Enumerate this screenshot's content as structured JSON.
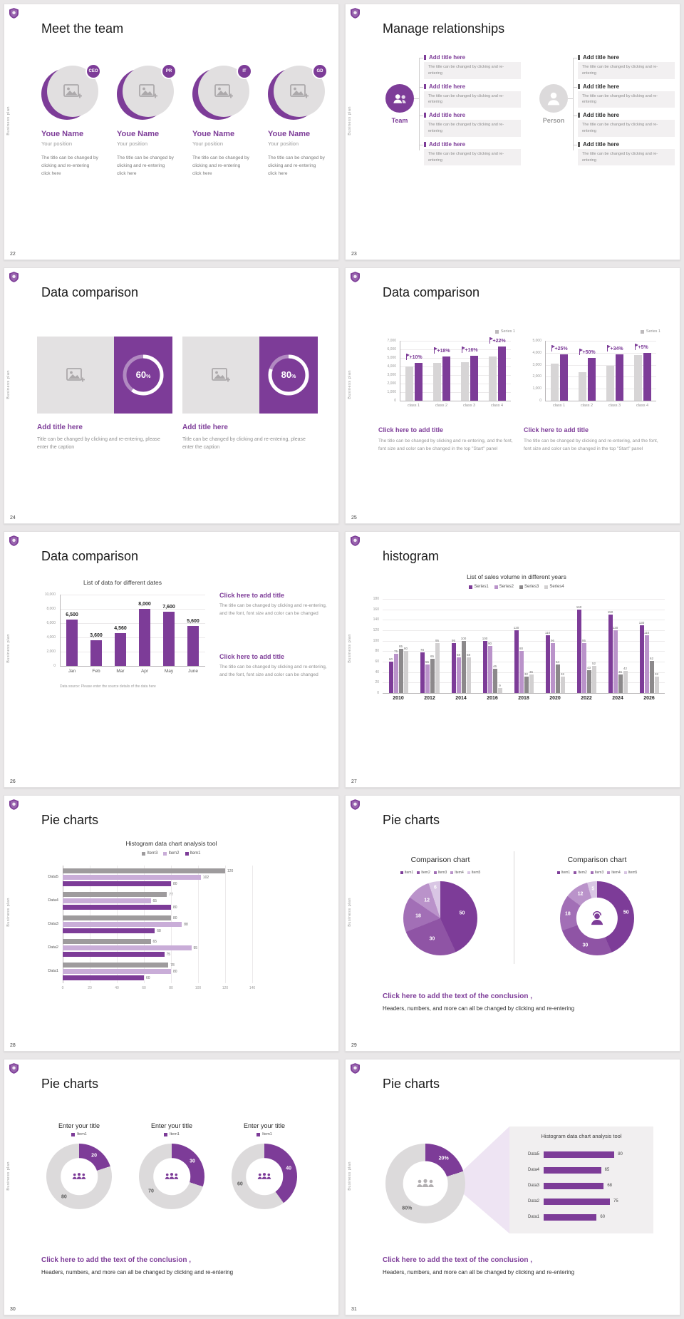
{
  "theme": {
    "purple": "#7D3C98",
    "purple_light": "#BA93CA",
    "purple_pale": "#D9C6E4",
    "gray_bar": "#D7D5D6",
    "donut_gray": "#DCDADB",
    "series_colors": [
      "#7D3C98",
      "#BA93CA",
      "#8C898B",
      "#D2D0D1"
    ],
    "hbar_colors": [
      "#9E9B9D",
      "#C9ADD8",
      "#7D3C98"
    ],
    "pie": [
      "#7D3C98",
      "#8F54A5",
      "#A26FB6",
      "#BA93CA",
      "#D9C6E4"
    ]
  },
  "common": {
    "sidebar_text": "Business plan"
  },
  "slides": [
    {
      "number": "22",
      "title": "Meet the team",
      "members": [
        {
          "badge": "CEO",
          "name": "Youe Name",
          "position": "Your position",
          "desc": "The title can be changed by clicking and re-entering click here"
        },
        {
          "badge": "PR",
          "name": "Youe Name",
          "position": "Your position",
          "desc": "The title can be changed by clicking and re-entering click here"
        },
        {
          "badge": "IT",
          "name": "Youe Name",
          "position": "Your position",
          "desc": "The title can be changed by clicking and re-entering click here"
        },
        {
          "badge": "GD",
          "name": "Youe Name",
          "position": "Your position",
          "desc": "The title can be changed by clicking and re-entering click here"
        }
      ]
    },
    {
      "number": "23",
      "title": "Manage relationships",
      "left_group": {
        "label": "Team",
        "items": [
          {
            "title": "Add title here",
            "text": "The title can be changed by clicking and re-entering"
          },
          {
            "title": "Add title here",
            "text": "The title can be changed by clicking and re-entering"
          },
          {
            "title": "Add title here",
            "text": "The title can be changed by clicking and re-entering"
          },
          {
            "title": "Add title here",
            "text": "The title can be changed by clicking and re-entering"
          }
        ]
      },
      "right_group": {
        "label": "Person",
        "items": [
          {
            "title": "Add title here",
            "text": "The title can be changed by clicking and re-entering"
          },
          {
            "title": "Add title here",
            "text": "The title can be changed by clicking and re-entering"
          },
          {
            "title": "Add title here",
            "text": "The title can be changed by clicking and re-entering"
          },
          {
            "title": "Add title here",
            "text": "The title can be changed by clicking and re-entering"
          }
        ]
      }
    },
    {
      "number": "24",
      "title": "Data comparison",
      "panels": [
        {
          "percent": 60,
          "percent_num": "60",
          "percent_sign": "%",
          "title": "Add title here",
          "text": "Title can be changed by clicking and re-entering, please enter the caption"
        },
        {
          "percent": 80,
          "percent_num": "80",
          "percent_sign": "%",
          "title": "Add title here",
          "text": "Title can be changed by clicking and re-entering, please enter the caption"
        }
      ]
    },
    {
      "number": "25",
      "title": "Data comparison",
      "charts": [
        {
          "legend": "Series 1",
          "yticks": [
            "7,000",
            "6,000",
            "5,000",
            "4,000",
            "3,000",
            "2,000",
            "1,000",
            "0"
          ],
          "ymax": 7000,
          "categories": [
            "class 1",
            "class 2",
            "class 3",
            "class 4"
          ],
          "base_values": [
            4000,
            4400,
            4500,
            5200
          ],
          "grow_values": [
            4400,
            5200,
            5220,
            6340
          ],
          "growth_labels": [
            "+10%",
            "+18%",
            "+16%",
            "+22%"
          ],
          "caption_title": "Click here to add title",
          "caption_text": "The title can be changed by clicking and re-entering, and the font, font size and color can be changed in the top \"Start\" panel"
        },
        {
          "legend": "Series 1",
          "yticks": [
            "5,000",
            "4,000",
            "3,000",
            "2,000",
            "1,000",
            "0"
          ],
          "ymax": 5000,
          "categories": [
            "class 1",
            "class 2",
            "class 3",
            "class 4"
          ],
          "base_values": [
            3100,
            2400,
            2900,
            3800
          ],
          "grow_values": [
            3880,
            3600,
            3890,
            3990
          ],
          "growth_labels": [
            "+25%",
            "+50%",
            "+34%",
            "+5%"
          ],
          "caption_title": "Click here to add title",
          "caption_text": "The title can be changed by clicking and re-entering, and the font, font size and color can be changed in the top \"Start\" panel"
        }
      ]
    },
    {
      "number": "26",
      "title": "Data comparison",
      "chart": {
        "title": "List of data for different dates",
        "yticks": [
          "10,000",
          "8,000",
          "6,000",
          "4,000",
          "2,000",
          "0"
        ],
        "ymax": 10000,
        "categories": [
          "Jan",
          "Feb",
          "Mar",
          "Apr",
          "May",
          "June"
        ],
        "values": [
          6500,
          3600,
          4560,
          8000,
          7600,
          5600
        ],
        "value_labels": [
          "6,500",
          "3,600",
          "4,560",
          "8,000",
          "7,600",
          "5,600"
        ],
        "source": "Data source: Please enter the source details of the data here"
      },
      "callouts": [
        {
          "title": "Click here to add title",
          "text": "The title can be changed by clicking and re-entering, and the font, font size and color can be changed"
        },
        {
          "title": "Click here to add title",
          "text": "The title can be changed by clicking and re-entering, and the font, font size and color can be changed"
        }
      ]
    },
    {
      "number": "27",
      "title": "histogram",
      "chart": {
        "title": "List of sales volume in different years",
        "legend": [
          "Series1",
          "Series2",
          "Series3",
          "Series4"
        ],
        "yticks": [
          180,
          160,
          140,
          120,
          100,
          80,
          60,
          40,
          20,
          0
        ],
        "ymax": 180,
        "categories": [
          "2010",
          "2012",
          "2014",
          "2016",
          "2018",
          "2020",
          "2022",
          "2024",
          "2026"
        ],
        "series": [
          {
            "name": "Series1",
            "values": [
              60,
              78,
              95,
              100,
              120,
              110,
              160,
              150,
              130
            ]
          },
          {
            "name": "Series2",
            "values": [
              75,
              55,
              68,
              90,
              80,
              96,
              95,
              120,
              110
            ]
          },
          {
            "name": "Series3",
            "values": [
              85,
              65,
              100,
              46,
              32,
              54,
              43,
              36,
              62
            ]
          },
          {
            "name": "Series4",
            "values": [
              80,
              95,
              68,
              9,
              36,
              32,
              52,
              42,
              32
            ]
          }
        ]
      }
    },
    {
      "number": "28",
      "title": "Pie charts",
      "chart": {
        "title": "Histogram data chart analysis tool",
        "legend": [
          "Item3",
          "Item2",
          "Item1"
        ],
        "xticks": [
          0,
          20,
          40,
          60,
          80,
          100,
          120,
          140
        ],
        "xmax": 140,
        "categories": [
          "Data5",
          "Data4",
          "Data3",
          "Data2",
          "Data1"
        ],
        "rows": [
          [
            120,
            102,
            80
          ],
          [
            77,
            65,
            80
          ],
          [
            80,
            88,
            68
          ],
          [
            65,
            95,
            75
          ],
          [
            78,
            80,
            60
          ]
        ]
      }
    },
    {
      "number": "29",
      "title": "Pie charts",
      "pie": {
        "title": "Comparison chart",
        "legend": [
          "Item1",
          "Item2",
          "Item3",
          "Item4",
          "Item5"
        ],
        "values": [
          50,
          30,
          18,
          12,
          6
        ]
      },
      "donut": {
        "title": "Comparison chart",
        "legend": [
          "Item1",
          "Item2",
          "Item3",
          "Item4",
          "Item5"
        ],
        "values": [
          50,
          30,
          18,
          12,
          5
        ]
      },
      "conclusion_title": "Click here to add the text of the conclusion ,",
      "conclusion_text": "Headers, numbers, and more can all be changed by clicking and re-entering"
    },
    {
      "number": "30",
      "title": "Pie charts",
      "donuts": [
        {
          "title": "Enter your title",
          "legend": "Item1",
          "purple": 20,
          "gray": 80
        },
        {
          "title": "Enter your title",
          "legend": "Item1",
          "purple": 30,
          "gray": 70
        },
        {
          "title": "Enter your title",
          "legend": "Item1",
          "purple": 40,
          "gray": 60
        }
      ],
      "conclusion_title": "Click here to add the text of the conclusion ,",
      "conclusion_text": "Headers, numbers, and more can all be changed by clicking and re-entering"
    },
    {
      "number": "31",
      "title": "Pie charts",
      "donut": {
        "purple": 20,
        "gray": 80,
        "purple_label": "20%",
        "gray_label": "80%"
      },
      "panel": {
        "title": "Histogram data chart analysis tool",
        "categories": [
          "Data5",
          "Data4",
          "Data3",
          "Data2",
          "Data1"
        ],
        "values": [
          80,
          65,
          68,
          75,
          60
        ],
        "xmax": 100
      },
      "conclusion_title": "Click here to add the text of the conclusion ,",
      "conclusion_text": "Headers, numbers, and more can all be changed by clicking and re-entering"
    }
  ]
}
